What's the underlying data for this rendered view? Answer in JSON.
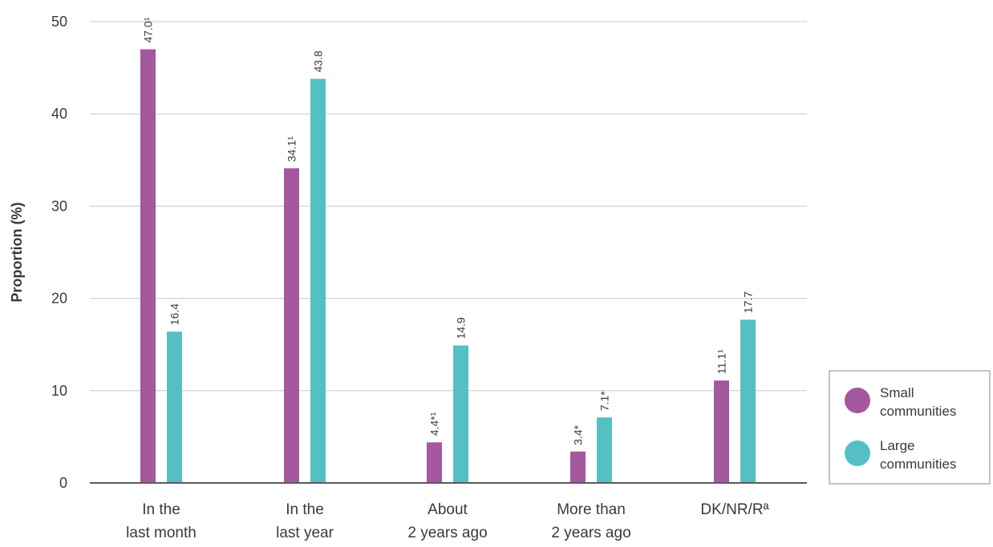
{
  "chart_data": {
    "type": "bar",
    "title": "",
    "xlabel": "",
    "ylabel": "Proportion (%)",
    "ylim": [
      0,
      50
    ],
    "yticks": [
      0,
      10,
      20,
      30,
      40,
      50
    ],
    "grid": true,
    "legend_position": "right",
    "categories": [
      [
        "In the",
        "last month"
      ],
      [
        "In the",
        "last year"
      ],
      [
        "About",
        "2 years ago"
      ],
      [
        "More than",
        "2 years ago"
      ],
      [
        "DK/NR/Rª"
      ]
    ],
    "series": [
      {
        "name": "Small communities",
        "legend_lines": [
          "Small",
          "communities"
        ],
        "color": "#a4589e",
        "values": [
          47.0,
          34.1,
          4.4,
          3.4,
          11.1
        ],
        "labels": [
          "47.0¹",
          "34.1¹",
          "4.4*¹",
          "3.4*",
          "11.1¹"
        ]
      },
      {
        "name": "Large communities",
        "legend_lines": [
          "Large",
          "communities"
        ],
        "color": "#55c0c3",
        "values": [
          16.4,
          43.8,
          14.9,
          7.1,
          17.7
        ],
        "labels": [
          "16.4",
          "43.8",
          "14.9",
          "7.1*",
          "17.7"
        ]
      }
    ]
  }
}
